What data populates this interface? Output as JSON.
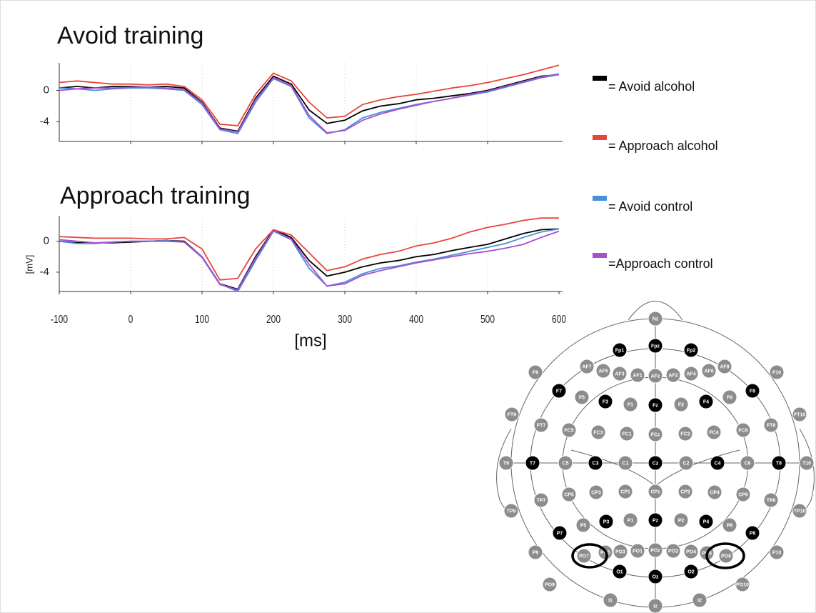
{
  "chart_data": [
    {
      "type": "line",
      "title": "Avoid training",
      "x": [
        -100,
        -75,
        -50,
        -25,
        0,
        25,
        50,
        75,
        100,
        125,
        150,
        175,
        200,
        225,
        250,
        275,
        300,
        325,
        350,
        375,
        400,
        425,
        450,
        475,
        500,
        525,
        550,
        575,
        600
      ],
      "series": [
        {
          "name": "= Avoid alcohol",
          "color": "#000000",
          "values": [
            0.3,
            0.5,
            0.3,
            0.5,
            0.5,
            0.4,
            0.5,
            0.3,
            -1.5,
            -4.8,
            -5.2,
            -1.0,
            1.8,
            0.8,
            -2.5,
            -4.2,
            -3.8,
            -2.6,
            -2.0,
            -1.7,
            -1.2,
            -1.0,
            -0.7,
            -0.4,
            0.0,
            0.6,
            1.2,
            1.8,
            2.0
          ]
        },
        {
          "name": "= Approach alcohol",
          "color": "#e8453c",
          "values": [
            1.0,
            1.2,
            1.0,
            0.8,
            0.8,
            0.7,
            0.8,
            0.5,
            -1.2,
            -4.3,
            -4.5,
            -0.5,
            2.2,
            1.2,
            -1.5,
            -3.5,
            -3.3,
            -1.8,
            -1.2,
            -0.8,
            -0.5,
            -0.1,
            0.3,
            0.6,
            1.0,
            1.5,
            2.0,
            2.6,
            3.2
          ]
        },
        {
          "name": "= Avoid control",
          "color": "#4a90d9",
          "values": [
            0.3,
            0.2,
            0.0,
            0.2,
            0.3,
            0.3,
            0.2,
            0.0,
            -1.8,
            -5.0,
            -5.5,
            -1.5,
            1.5,
            0.5,
            -3.5,
            -5.5,
            -5.0,
            -3.5,
            -2.8,
            -2.3,
            -1.8,
            -1.4,
            -1.0,
            -0.6,
            -0.2,
            0.4,
            1.0,
            1.6,
            2.0
          ]
        },
        {
          "name": "=Approach control",
          "color": "#a64fd0",
          "values": [
            0.0,
            0.2,
            0.3,
            0.3,
            0.4,
            0.4,
            0.3,
            0.1,
            -1.6,
            -4.9,
            -5.3,
            -1.2,
            1.6,
            0.6,
            -3.2,
            -5.4,
            -5.1,
            -3.8,
            -3.0,
            -2.4,
            -1.9,
            -1.4,
            -1.0,
            -0.5,
            -0.1,
            0.5,
            1.1,
            1.7,
            2.1
          ]
        }
      ],
      "xlim": [
        -100,
        605
      ],
      "ylim": [
        -6.5,
        3.5
      ],
      "yticks": [
        -4,
        0
      ],
      "xticks": [
        0,
        100,
        200,
        300,
        400,
        500
      ],
      "grid": true
    },
    {
      "type": "line",
      "title": "Approach training",
      "xlabel": "[ms]",
      "ylabel": "[mV]",
      "x": [
        -100,
        -75,
        -50,
        -25,
        0,
        25,
        50,
        75,
        100,
        125,
        150,
        175,
        200,
        225,
        250,
        275,
        300,
        325,
        350,
        375,
        400,
        425,
        450,
        475,
        500,
        525,
        550,
        575,
        600
      ],
      "series": [
        {
          "color": "#000000",
          "values": [
            0.0,
            -0.2,
            -0.2,
            -0.2,
            -0.1,
            0.0,
            0.1,
            0.0,
            -2.0,
            -5.5,
            -6.2,
            -2.0,
            1.5,
            0.5,
            -2.5,
            -4.5,
            -4.0,
            -3.3,
            -2.8,
            -2.5,
            -2.0,
            -1.7,
            -1.2,
            -0.8,
            -0.4,
            0.3,
            1.0,
            1.5,
            1.6
          ]
        },
        {
          "color": "#e8453c",
          "values": [
            0.6,
            0.5,
            0.4,
            0.4,
            0.4,
            0.3,
            0.3,
            0.5,
            -1.0,
            -5.0,
            -4.8,
            -1.0,
            1.5,
            0.8,
            -1.5,
            -3.8,
            -3.3,
            -2.3,
            -1.7,
            -1.3,
            -0.6,
            -0.2,
            0.4,
            1.2,
            1.8,
            2.2,
            2.7,
            3.0,
            3.0
          ]
        },
        {
          "color": "#4a90d9",
          "values": [
            0.0,
            -0.3,
            -0.3,
            -0.1,
            0.0,
            0.0,
            0.1,
            -0.1,
            -2.0,
            -5.5,
            -6.5,
            -2.5,
            1.3,
            0.2,
            -3.5,
            -5.8,
            -5.3,
            -4.2,
            -3.5,
            -3.2,
            -2.7,
            -2.3,
            -1.8,
            -1.3,
            -0.8,
            -0.3,
            0.5,
            1.2,
            1.6
          ]
        },
        {
          "color": "#a64fd0",
          "values": [
            0.2,
            0.0,
            -0.2,
            -0.1,
            0.0,
            0.0,
            0.0,
            -0.1,
            -2.1,
            -5.6,
            -6.3,
            -2.2,
            1.4,
            0.3,
            -3.0,
            -5.8,
            -5.5,
            -4.4,
            -3.8,
            -3.3,
            -2.8,
            -2.4,
            -2.0,
            -1.6,
            -1.3,
            -0.9,
            -0.4,
            0.5,
            1.3
          ]
        }
      ],
      "xlim": [
        -100,
        605
      ],
      "ylim": [
        -6.5,
        3.3
      ],
      "yticks": [
        -4,
        0
      ],
      "xticks": [
        -100,
        0,
        100,
        200,
        300,
        400,
        500,
        600
      ],
      "grid": true
    }
  ],
  "electrodes": [
    "Nz",
    "Fp1",
    "Fpz",
    "Fp2",
    "AF7",
    "AF5",
    "AF3",
    "AF1",
    "AFz",
    "AF2",
    "AF4",
    "AF6",
    "AF8",
    "F9",
    "F10",
    "F7",
    "F5",
    "F3",
    "F1",
    "Fz",
    "F2",
    "F4",
    "F6",
    "F8",
    "FT9",
    "FT10",
    "FT7",
    "FC5",
    "FC3",
    "FC1",
    "FCz",
    "FC2",
    "FC4",
    "FC6",
    "FT8",
    "T9",
    "T7",
    "C5",
    "C3",
    "C1",
    "Cz",
    "C2",
    "C4",
    "C6",
    "T8",
    "T10",
    "TP9",
    "TP7",
    "CP5",
    "CP3",
    "CP1",
    "CPz",
    "CP2",
    "CP4",
    "CP6",
    "TP8",
    "TP10",
    "P7",
    "P5",
    "P3",
    "P1",
    "Pz",
    "P2",
    "P4",
    "P6",
    "P8",
    "P9",
    "PO7",
    "PO5",
    "PO3",
    "PO1",
    "POz",
    "PO2",
    "PO4",
    "PO6",
    "PO8",
    "P10",
    "O1",
    "Oz",
    "O2",
    "PO9",
    "PO10",
    "I1",
    "Iz",
    "I2"
  ]
}
